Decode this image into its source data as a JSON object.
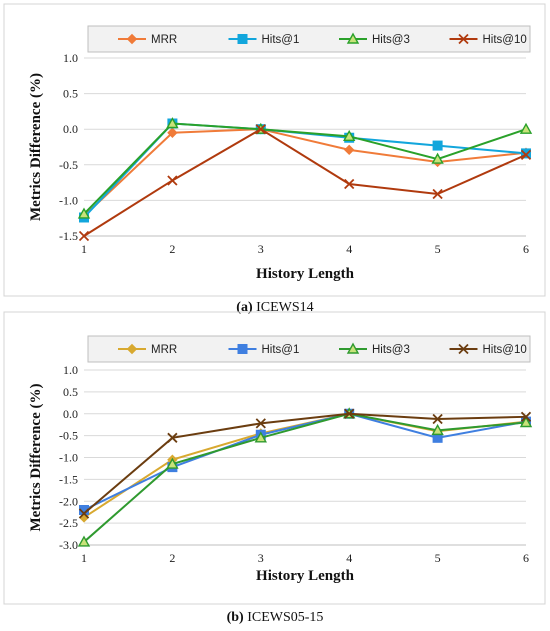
{
  "chart_data": [
    {
      "type": "line",
      "caption_letter": "(a)",
      "caption_text": "ICEWS14",
      "xlabel": "History Length",
      "ylabel": "Metrics  Difference (%)",
      "x": [
        1,
        2,
        3,
        4,
        5,
        6
      ],
      "xticks": [
        "1",
        "2",
        "3",
        "4",
        "5",
        "6"
      ],
      "ylim": [
        -1.5,
        1.0
      ],
      "yticks": [
        "1.0",
        "0.5",
        "0.0",
        "-0.5",
        "-1.0",
        "-1.5"
      ],
      "ytick_values": [
        1.0,
        0.5,
        0.0,
        -0.5,
        -1.0,
        -1.5
      ],
      "grid": "horizontal",
      "legend_position": "top",
      "series": [
        {
          "name": "MRR",
          "color": "#f07b39",
          "marker": "diamond",
          "values": [
            -1.22,
            -0.05,
            0.0,
            -0.29,
            -0.46,
            -0.33
          ]
        },
        {
          "name": "Hits@1",
          "color": "#12a6dc",
          "marker": "square",
          "values": [
            -1.24,
            0.08,
            0.0,
            -0.12,
            -0.23,
            -0.34
          ]
        },
        {
          "name": "Hits@3",
          "color": "#2aa12a",
          "marker": "triangle",
          "values": [
            -1.19,
            0.08,
            0.0,
            -0.1,
            -0.42,
            0.0
          ]
        },
        {
          "name": "Hits@10",
          "color": "#b03a0e",
          "marker": "x",
          "values": [
            -1.5,
            -0.72,
            0.0,
            -0.77,
            -0.91,
            -0.36
          ]
        }
      ]
    },
    {
      "type": "line",
      "caption_letter": "(b)",
      "caption_text": "ICEWS05-15",
      "xlabel": "History Length",
      "ylabel": "Metrics  Difference (%)",
      "x": [
        1,
        2,
        3,
        4,
        5,
        6
      ],
      "xticks": [
        "1",
        "2",
        "3",
        "4",
        "5",
        "6"
      ],
      "ylim": [
        -3.0,
        1.0
      ],
      "yticks": [
        "1.0",
        "0.5",
        "0.0",
        "-0.5",
        "-1.0",
        "-1.5",
        "-2.0",
        "-2.5",
        "-3.0"
      ],
      "ytick_values": [
        1.0,
        0.5,
        0.0,
        -0.5,
        -1.0,
        -1.5,
        -2.0,
        -2.5,
        -3.0
      ],
      "grid": "horizontal",
      "legend_position": "top",
      "series": [
        {
          "name": "MRR",
          "color": "#d8a930",
          "marker": "diamond",
          "values": [
            -2.37,
            -1.05,
            -0.45,
            0.0,
            -0.4,
            -0.18
          ]
        },
        {
          "name": "Hits@1",
          "color": "#3f7fe0",
          "marker": "square",
          "values": [
            -2.2,
            -1.22,
            -0.48,
            0.0,
            -0.55,
            -0.18
          ]
        },
        {
          "name": "Hits@3",
          "color": "#2f9a2f",
          "marker": "triangle",
          "values": [
            -2.93,
            -1.15,
            -0.55,
            0.0,
            -0.38,
            -0.2
          ]
        },
        {
          "name": "Hits@10",
          "color": "#6b3d10",
          "marker": "x",
          "values": [
            -2.28,
            -0.55,
            -0.22,
            0.0,
            -0.12,
            -0.07
          ]
        }
      ]
    }
  ]
}
